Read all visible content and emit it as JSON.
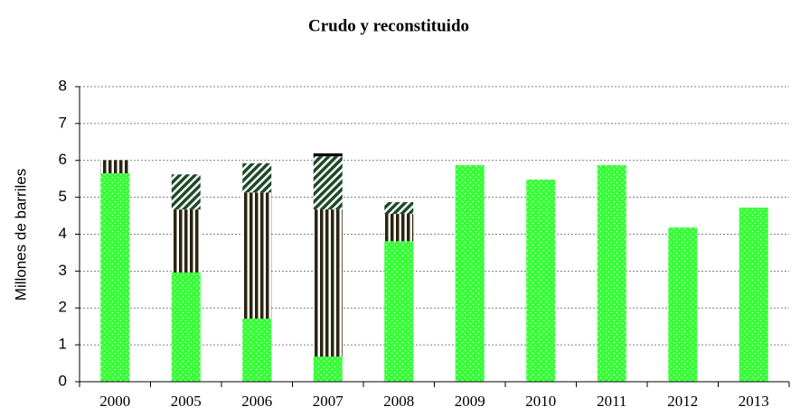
{
  "chart_data": {
    "type": "stacked-bar",
    "title": "Crudo y reconstituido",
    "ylabel": "Millones de barriles",
    "categories": [
      "2000",
      "2005",
      "2006",
      "2007",
      "2008",
      "2009",
      "2010",
      "2011",
      "2012",
      "2013"
    ],
    "series": [
      {
        "color": "#33ff33",
        "pattern": "dots",
        "values": [
          5.65,
          2.96,
          1.71,
          0.68,
          3.81,
          5.87,
          5.48,
          5.87,
          4.18,
          4.72
        ]
      },
      {
        "color": "#2b2410",
        "pattern": "vertical",
        "values": [
          0.36,
          1.71,
          3.42,
          3.99,
          0.74,
          0,
          0,
          0,
          0,
          0
        ]
      },
      {
        "color": "#1f4a2a",
        "pattern": "diagonal",
        "values": [
          0,
          0.95,
          0.79,
          1.44,
          0.32,
          0,
          0,
          0,
          0,
          0
        ]
      },
      {
        "color": "#000000",
        "pattern": "solid",
        "values": [
          0,
          0,
          0,
          0.08,
          0,
          0,
          0,
          0,
          0,
          0
        ]
      }
    ],
    "ylim": [
      0,
      8
    ],
    "yticks": [
      0,
      1,
      2,
      3,
      4,
      5,
      6,
      7,
      8
    ],
    "grid": true
  }
}
